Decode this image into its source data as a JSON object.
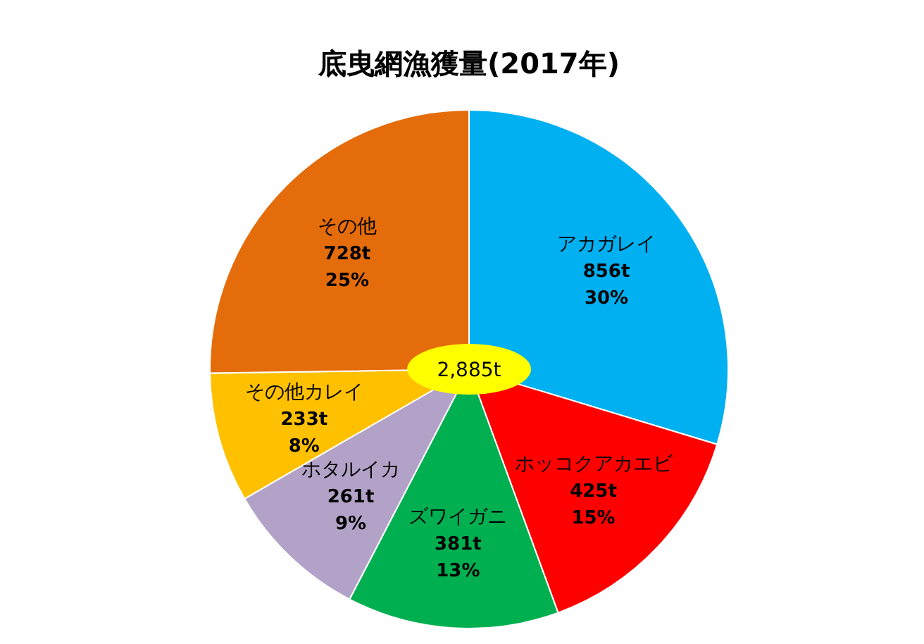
{
  "chart_data": {
    "type": "pie",
    "title": "底曳網漁獲量(2017年)",
    "categories": [
      "アカガレイ",
      "ホッコクアカエビ",
      "ズワイガニ",
      "ホタルイカ",
      "その他カレイ",
      "その他"
    ],
    "values": [
      856,
      425,
      381,
      261,
      233,
      728
    ],
    "colors": [
      "#00b0f0",
      "#ff0000",
      "#00b050",
      "#b3a2c7",
      "#ffc000",
      "#e46c0a"
    ],
    "value_labels": [
      "856t",
      "425t",
      "381t",
      "261t",
      "233t",
      "728t"
    ],
    "annotations": [
      "2,885t",
      {
        "text": "30%",
        "x": "アカガレイ"
      },
      {
        "text": "15%",
        "x": "ホッコクアカエビ"
      },
      {
        "text": "13%",
        "x": "ズワイガニ"
      },
      {
        "text": "9%",
        "x": "ホタルイカ"
      },
      {
        "text": "8%",
        "x": "その他カレイ"
      },
      {
        "text": "25%",
        "x": "その他"
      }
    ],
    "legend": false
  }
}
